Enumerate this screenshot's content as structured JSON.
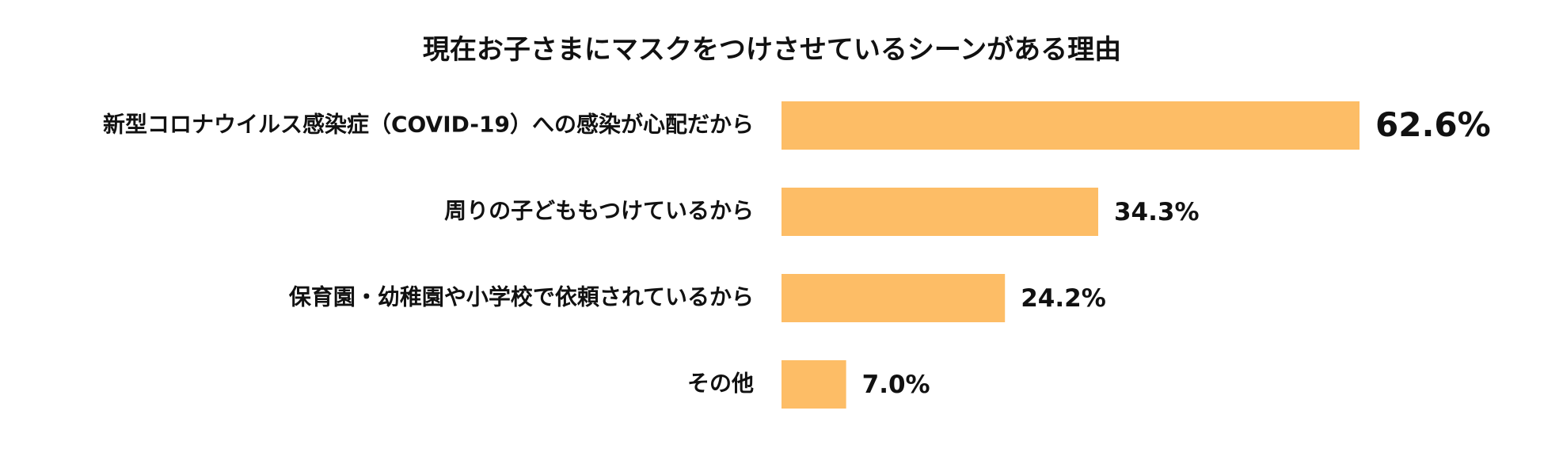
{
  "chart_data": {
    "type": "bar",
    "orientation": "horizontal",
    "title": "現在お子さまにマスクをつけさせているシーンがある理由",
    "categories": [
      "新型コロナウイルス感染症（COVID-19）への感染が心配だから",
      "周りの子どももつけているから",
      "保育園・幼稚園や小学校で依頼されているから",
      "その他"
    ],
    "values": [
      62.6,
      34.3,
      24.2,
      7.0
    ],
    "value_labels": [
      "62.6%",
      "34.3%",
      "24.2%",
      "7.0%"
    ],
    "unit": "%",
    "xlim": [
      0,
      62.6
    ],
    "bar_color": "#FDBD66",
    "text_color": "#111111",
    "grid": false,
    "legend": "none"
  }
}
